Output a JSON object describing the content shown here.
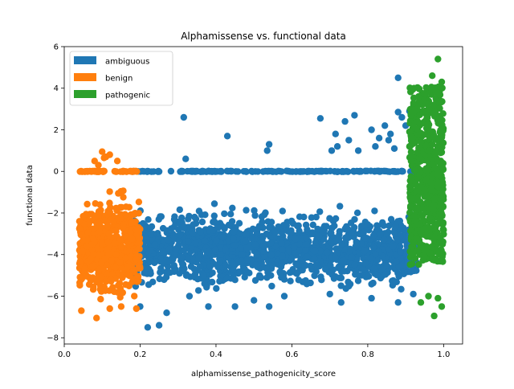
{
  "chart_data": {
    "type": "scatter",
    "title": "Alphamissense vs. functional data",
    "xlabel": "alphamissense_pathogenicity_score",
    "ylabel": "functional data",
    "xlim": [
      -0.0,
      1.05
    ],
    "ylim": [
      -8.3,
      6.0
    ],
    "x_ticks": [
      0.0,
      0.2,
      0.4,
      0.6,
      0.8,
      1.0
    ],
    "x_tick_labels": [
      "0.0",
      "0.2",
      "0.4",
      "0.6",
      "0.8",
      "1.0"
    ],
    "y_ticks": [
      -8,
      -6,
      -4,
      -2,
      0,
      2,
      4,
      6
    ],
    "y_tick_labels": [
      "−8",
      "−6",
      "−4",
      "−2",
      "0",
      "2",
      "4",
      "6"
    ],
    "grid": false,
    "legend_position": "top-left",
    "series": [
      {
        "name": "ambiguous",
        "color": "#1f77b4",
        "x_range": [
          0.18,
          0.93
        ],
        "bulk_y_range": [
          -6.0,
          -1.5
        ],
        "zero_band": true,
        "points": [
          [
            0.315,
            2.6
          ],
          [
            0.43,
            1.7
          ],
          [
            0.54,
            1.3
          ],
          [
            0.535,
            1.0
          ],
          [
            0.32,
            0.6
          ],
          [
            0.675,
            2.55
          ],
          [
            0.74,
            2.4
          ],
          [
            0.765,
            2.7
          ],
          [
            0.75,
            1.5
          ],
          [
            0.715,
            1.8
          ],
          [
            0.72,
            1.2
          ],
          [
            0.705,
            1.0
          ],
          [
            0.775,
            1.0
          ],
          [
            0.81,
            2.0
          ],
          [
            0.83,
            1.6
          ],
          [
            0.845,
            2.2
          ],
          [
            0.855,
            1.5
          ],
          [
            0.88,
            4.5
          ],
          [
            0.88,
            2.85
          ],
          [
            0.9,
            2.2
          ],
          [
            0.87,
            1.1
          ],
          [
            0.86,
            1.8
          ],
          [
            0.82,
            1.2
          ],
          [
            0.89,
            2.6
          ],
          [
            0.91,
            2.9
          ],
          [
            0.2,
            -6.5
          ],
          [
            0.22,
            -7.5
          ],
          [
            0.25,
            -7.4
          ],
          [
            0.38,
            -6.5
          ],
          [
            0.45,
            -6.5
          ],
          [
            0.54,
            -6.5
          ],
          [
            0.58,
            -6.0
          ],
          [
            0.7,
            -5.9
          ],
          [
            0.73,
            -6.3
          ],
          [
            0.81,
            -6.1
          ],
          [
            0.88,
            -6.3
          ],
          [
            0.92,
            -5.9
          ],
          [
            0.27,
            -6.8
          ],
          [
            0.33,
            -6.0
          ],
          [
            0.5,
            -6.2
          ]
        ]
      },
      {
        "name": "benign",
        "color": "#ff7f0e",
        "x_range": [
          0.04,
          0.2
        ],
        "bulk_y_range": [
          -6.5,
          -0.8
        ],
        "zero_band": true,
        "points": [
          [
            0.1,
            0.95
          ],
          [
            0.12,
            0.8
          ],
          [
            0.11,
            0.7
          ],
          [
            0.14,
            0.5
          ],
          [
            0.08,
            0.5
          ],
          [
            0.09,
            0.3
          ],
          [
            0.105,
            0.65
          ],
          [
            0.045,
            -6.7
          ],
          [
            0.085,
            -7.05
          ],
          [
            0.12,
            -6.6
          ],
          [
            0.15,
            -6.5
          ],
          [
            0.05,
            -3.3
          ],
          [
            0.04,
            -2.4
          ],
          [
            0.19,
            -6.6
          ]
        ]
      },
      {
        "name": "pathogenic",
        "color": "#2ca02c",
        "x_range": [
          0.91,
          1.0
        ],
        "bulk_y_range": [
          -6.0,
          4.3
        ],
        "zero_band": false,
        "points": [
          [
            0.985,
            5.4
          ],
          [
            0.97,
            4.6
          ],
          [
            0.995,
            4.3
          ],
          [
            0.98,
            3.8
          ],
          [
            0.96,
            3.0
          ],
          [
            0.93,
            3.0
          ],
          [
            0.945,
            2.9
          ],
          [
            0.92,
            2.2
          ],
          [
            0.91,
            1.2
          ],
          [
            0.975,
            -6.95
          ],
          [
            0.94,
            -6.3
          ],
          [
            0.995,
            -6.5
          ],
          [
            0.985,
            -6.1
          ],
          [
            0.96,
            -6.0
          ]
        ]
      }
    ]
  }
}
